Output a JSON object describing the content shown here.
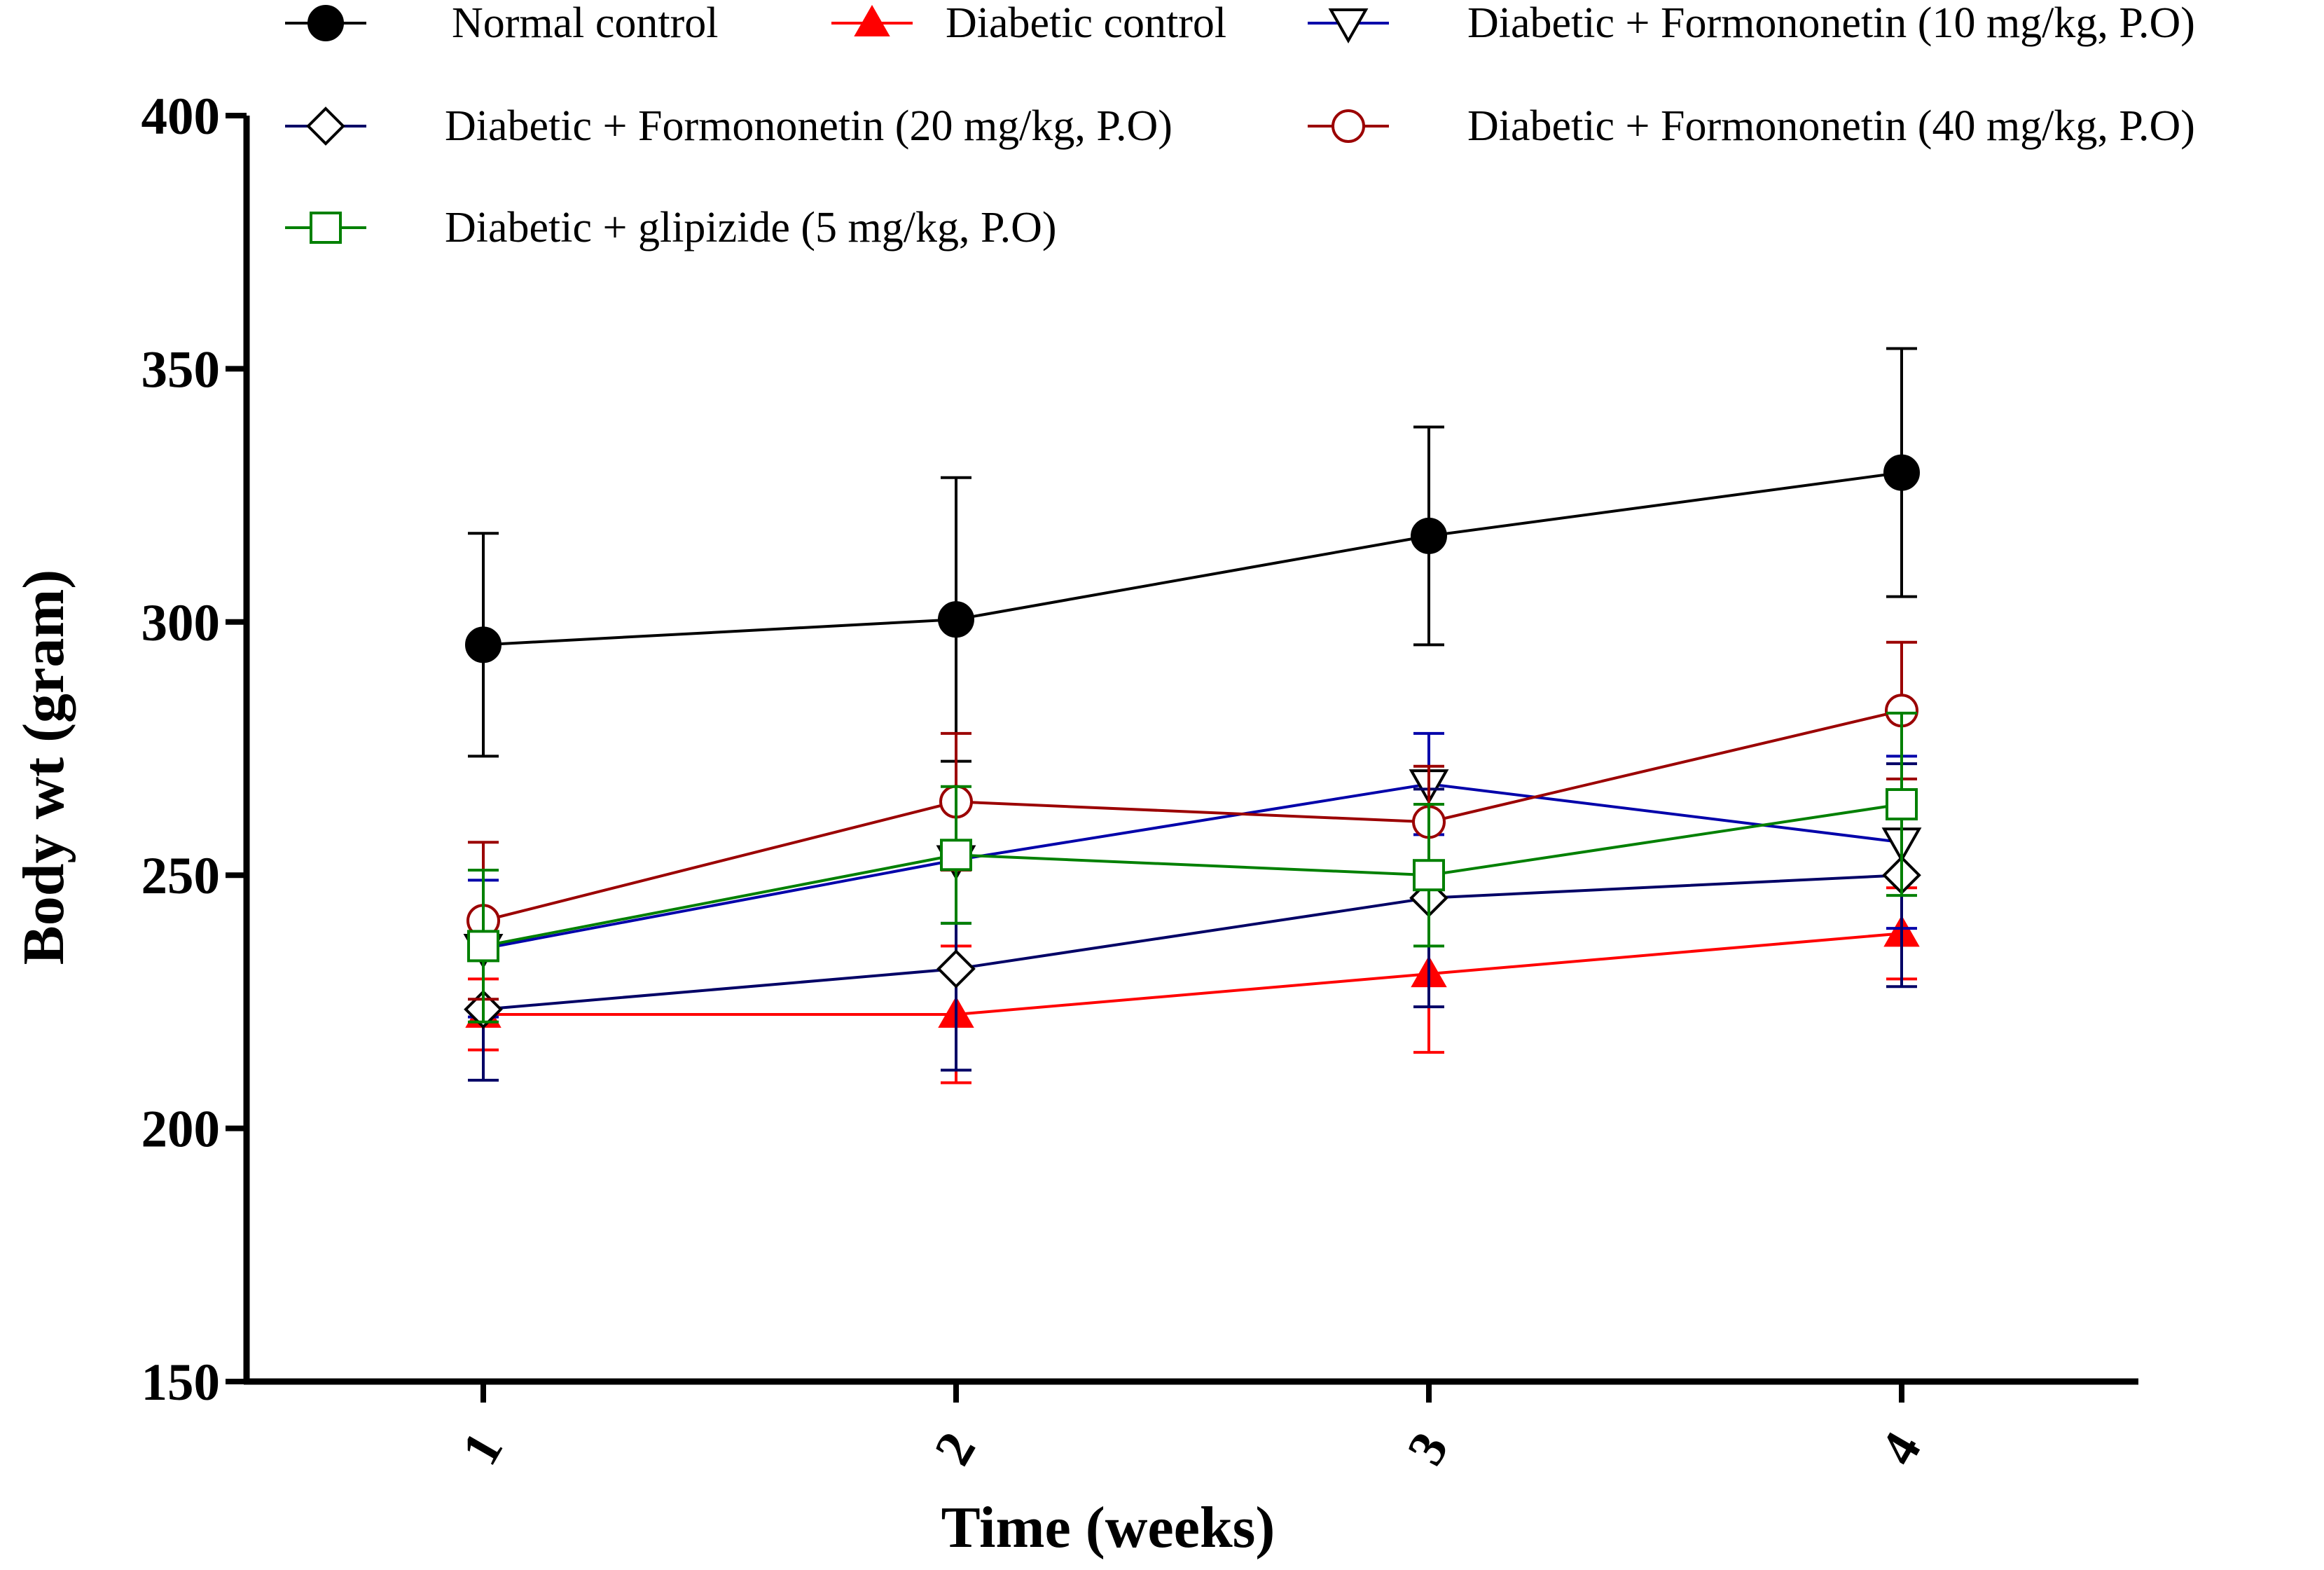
{
  "chart_data": {
    "type": "line",
    "title": "",
    "xlabel": "Time  (weeks)",
    "ylabel": "Body wt (gram)",
    "x": [
      1,
      2,
      3,
      4
    ],
    "x_tick_labels": [
      "1",
      "2",
      "3",
      "4"
    ],
    "ylim": [
      150,
      400
    ],
    "y_ticks": [
      150,
      200,
      250,
      300,
      350,
      400
    ],
    "y_tick_labels": [
      "150",
      "200",
      "250",
      "300",
      "350",
      "400"
    ],
    "grid": false,
    "legend_position": "top",
    "series": [
      {
        "name": "Normal control",
        "color": "#000000",
        "marker": "filled-circle",
        "values": [
          295.5,
          300.5,
          317,
          329.5
        ],
        "errors": [
          22,
          28,
          21.5,
          24.5
        ]
      },
      {
        "name": "Diabetic control",
        "color": "#ff0000",
        "marker": "filled-triangle",
        "values": [
          222.5,
          222.5,
          230.5,
          238.5
        ],
        "errors": [
          7,
          13.5,
          15.5,
          9
        ]
      },
      {
        "name": "Diabetic + Formononetin (10 mg/kg, P.O)",
        "color": "#0000aa",
        "marker": "open-triangle-down",
        "values": [
          235.5,
          253,
          268,
          256.5
        ],
        "errors": [
          13.5,
          12.5,
          10,
          17
        ]
      },
      {
        "name": "Diabetic + Formononetin (20 mg/kg, P.O)",
        "color": "#000066",
        "marker": "open-diamond",
        "values": [
          223.5,
          231.5,
          245.5,
          250
        ],
        "errors": [
          14,
          20,
          21.5,
          22
        ]
      },
      {
        "name": "Diabetic + Formononetin (40 mg/kg, P.O)",
        "color": "#9b0000",
        "marker": "open-circle",
        "values": [
          241,
          264.5,
          260.5,
          282.5
        ],
        "errors": [
          15.5,
          13.5,
          11,
          13.5
        ]
      },
      {
        "name": "Diabetic + glipizide (5 mg/kg, P.O)",
        "color": "#008000",
        "marker": "open-square",
        "values": [
          236,
          254,
          250,
          264
        ],
        "errors": [
          15,
          13.5,
          14,
          18
        ]
      }
    ]
  }
}
